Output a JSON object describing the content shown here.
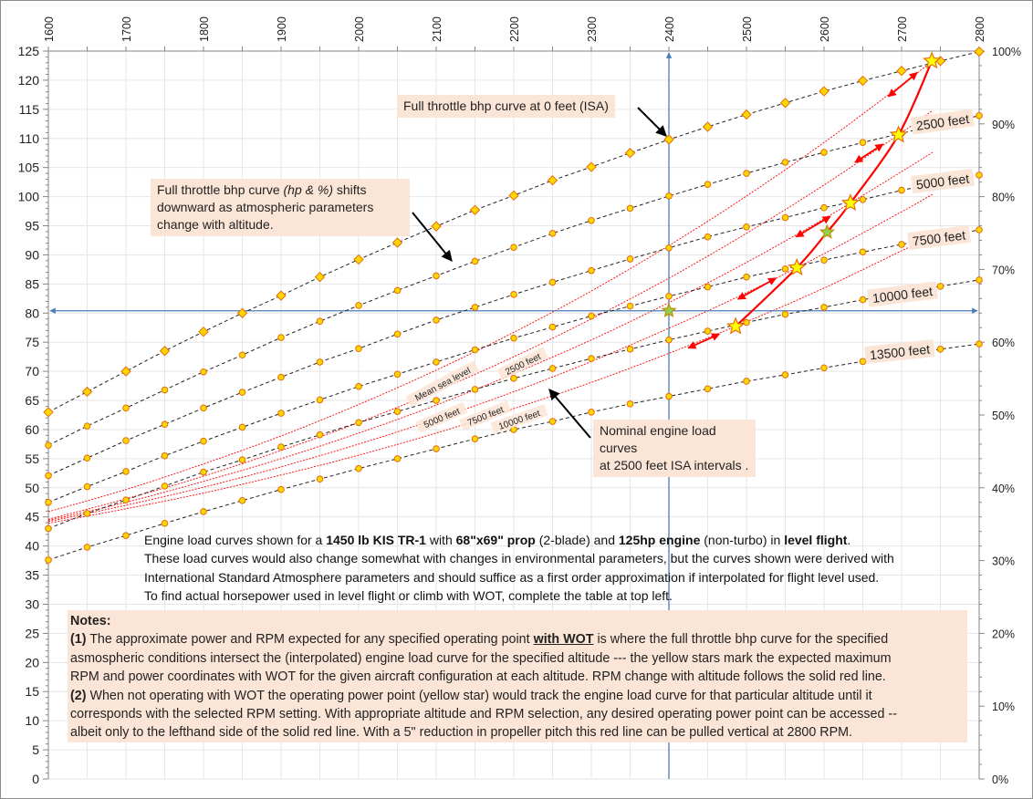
{
  "chart_data": {
    "type": "line",
    "title": "",
    "xlabel": "",
    "ylabel": "",
    "x_axis": {
      "position": "top",
      "range": [
        1600,
        2800
      ],
      "ticks": [
        1600,
        1700,
        1800,
        1900,
        2000,
        2100,
        2200,
        2300,
        2400,
        2500,
        2600,
        2700,
        2800
      ],
      "grid_step": 50
    },
    "y_axis_left": {
      "range": [
        0,
        125
      ],
      "ticks": [
        0,
        5,
        10,
        15,
        20,
        25,
        30,
        35,
        40,
        45,
        50,
        55,
        60,
        65,
        70,
        75,
        80,
        85,
        90,
        95,
        100,
        105,
        110,
        115,
        120,
        125
      ]
    },
    "y_axis_right": {
      "range": [
        0,
        100
      ],
      "ticks": [
        "0%",
        "10%",
        "20%",
        "30%",
        "40%",
        "50%",
        "60%",
        "70%",
        "80%",
        "90%",
        "100%"
      ]
    },
    "grid": true,
    "full_throttle_x": [
      1600,
      1650,
      1700,
      1750,
      1800,
      1850,
      1900,
      1950,
      2000,
      2050,
      2100,
      2150,
      2200,
      2250,
      2300,
      2350,
      2400,
      2450,
      2500,
      2550,
      2600,
      2650,
      2700,
      2750,
      2800
    ],
    "full_throttle_series": [
      {
        "name": "",
        "marker": "diamond",
        "values": [
          63.0,
          66.5,
          70.0,
          73.5,
          76.8,
          80.0,
          83.0,
          86.2,
          89.2,
          92.1,
          94.9,
          97.7,
          100.2,
          102.8,
          105.1,
          107.5,
          109.8,
          112.0,
          114.1,
          116.1,
          118.1,
          119.9,
          121.6,
          123.3,
          124.9
        ]
      },
      {
        "name": "2500 feet",
        "marker": "circle",
        "values": [
          57.3,
          60.6,
          63.7,
          66.8,
          69.9,
          72.8,
          75.8,
          78.6,
          81.3,
          83.9,
          86.4,
          88.9,
          91.3,
          93.7,
          95.9,
          98.0,
          100.1,
          102.1,
          104.0,
          105.9,
          107.6,
          109.3,
          110.9,
          null,
          113.9
        ]
      },
      {
        "name": "5000 feet",
        "marker": "circle",
        "values": [
          52.1,
          55.1,
          58.1,
          60.9,
          63.7,
          66.4,
          69.0,
          71.6,
          73.9,
          76.4,
          78.8,
          81.0,
          83.2,
          85.3,
          87.3,
          89.3,
          91.2,
          93.1,
          94.8,
          96.4,
          98.1,
          99.5,
          101.1,
          null,
          103.7
        ]
      },
      {
        "name": "7500 feet",
        "marker": "circle",
        "values": [
          47.5,
          50.2,
          52.8,
          55.5,
          58.0,
          60.4,
          62.8,
          65.1,
          67.4,
          69.5,
          71.6,
          73.7,
          75.7,
          77.6,
          79.5,
          81.2,
          82.9,
          84.5,
          86.2,
          87.6,
          89.1,
          90.5,
          91.8,
          null,
          94.3
        ]
      },
      {
        "name": "10000 feet",
        "marker": "circle",
        "values": [
          43.0,
          45.6,
          47.9,
          50.3,
          52.7,
          54.8,
          57.0,
          59.1,
          61.2,
          63.1,
          65.0,
          66.9,
          68.8,
          70.5,
          72.2,
          73.8,
          75.4,
          76.9,
          78.4,
          79.8,
          81.0,
          82.3,
          null,
          84.6,
          85.7
        ]
      },
      {
        "name": "13500 feet",
        "marker": "circle",
        "values": [
          37.6,
          39.8,
          41.8,
          43.9,
          45.9,
          47.8,
          49.7,
          51.5,
          53.3,
          55.0,
          56.7,
          58.4,
          60.0,
          61.4,
          63.0,
          64.4,
          65.7,
          67.0,
          68.3,
          69.4,
          70.6,
          71.7,
          null,
          73.8,
          74.7
        ]
      }
    ],
    "load_curve_x": [
      1600,
      1700,
      1800,
      1900,
      2000,
      2100,
      2200,
      2300,
      2400,
      2500,
      2600,
      2700,
      2740
    ],
    "load_curves": [
      {
        "name": "Mean sea level",
        "values": [
          45.9,
          49.7,
          54.1,
          58.9,
          64.3,
          70.2,
          76.7,
          83.8,
          91.6,
          100.1,
          109.3,
          119.2,
          123.3
        ]
      },
      {
        "name": "2500 feet",
        "values": [
          44.6,
          48.1,
          52.0,
          56.4,
          61.2,
          66.6,
          72.5,
          79.0,
          86.0,
          93.7,
          102.0,
          111.0,
          114.8
        ]
      },
      {
        "name": "5000 feet",
        "values": [
          44.4,
          47.5,
          51.1,
          55.0,
          59.4,
          64.2,
          69.6,
          75.4,
          81.8,
          88.7,
          96.2,
          104.3,
          107.6
        ]
      },
      {
        "name": "7500 feet",
        "values": [
          44.2,
          47.0,
          50.1,
          53.6,
          57.5,
          61.8,
          66.5,
          71.7,
          77.4,
          83.5,
          90.2,
          97.4,
          100.4
        ]
      },
      {
        "name": "10000 feet",
        "values": [
          43.9,
          46.4,
          49.1,
          52.2,
          55.6,
          59.4,
          63.6,
          68.1,
          73.1,
          78.5,
          84.3,
          90.7,
          93.3
        ]
      }
    ],
    "wot_line": [
      [
        2486,
        77.7
      ],
      [
        2565,
        87.8
      ],
      [
        2604,
        93.9
      ],
      [
        2634,
        98.9
      ],
      [
        2696,
        110.6
      ],
      [
        2739,
        123.3
      ]
    ],
    "wot_stars": [
      [
        2739,
        123.3
      ],
      [
        2696,
        110.6
      ],
      [
        2634,
        98.9
      ],
      [
        2565,
        87.8
      ],
      [
        2486,
        77.7
      ]
    ],
    "green_stars": [
      [
        2604,
        93.9
      ],
      [
        2400,
        80.4
      ]
    ],
    "direction_arrows": [
      [
        [
          2683,
          117.2
        ],
        [
          2720,
          121.3
        ]
      ],
      [
        [
          2640,
          105.9
        ],
        [
          2676,
          109.0
        ]
      ],
      [
        [
          2564,
          93.1
        ],
        [
          2608,
          96.6
        ]
      ],
      [
        [
          2489,
          82.4
        ],
        [
          2538,
          86.0
        ]
      ],
      [
        [
          2425,
          74.0
        ],
        [
          2465,
          76.4
        ]
      ]
    ],
    "crosshair": {
      "x": 2400,
      "y": 80.4
    },
    "colors": {
      "full_throttle_line": "#222222",
      "marker_fill": "#ffd700",
      "marker_stroke": "#e46c0a",
      "load_curve": "#ff0000",
      "wot_line": "#ff0000",
      "crosshair": "#4a7ebb",
      "star_fill": "#ffff00",
      "green_star_fill": "#92d050",
      "annotation_bg": "#fbe5d6",
      "grid": "#e6e6e6"
    }
  },
  "annotations": {
    "zero_feet": "Full throttle bhp curve at 0 feet (ISA)",
    "shift": {
      "line1_a": "Full throttle bhp curve ",
      "line1_i": "(hp & %)",
      "line1_b": " shifts",
      "line2": "downward as atmospheric parameters",
      "line3": "change with altitude."
    },
    "nominal": {
      "line1": "Nominal engine load curves",
      "line2": "at 2500 feet ISA intervals ."
    }
  },
  "paragraph": [
    [
      {
        "t": "Engine load curves shown for a "
      },
      {
        "t": "1450 lb KIS TR-1",
        "b": true
      },
      {
        "t": " with "
      },
      {
        "t": "68\"x69\" prop",
        "b": true
      },
      {
        "t": " (2-blade) and "
      },
      {
        "t": "125hp engine",
        "b": true
      },
      {
        "t": " (non-turbo) in "
      },
      {
        "t": "level flight",
        "b": true
      },
      {
        "t": "."
      }
    ],
    [
      {
        "t": "These load curves would also change  somewhat with changes in environmental parameters, but the curves shown were derived with"
      }
    ],
    [
      {
        "t": "International Standard Atmosphere parameters and should suffice as a first order approximation if interpolated for flight level used."
      }
    ],
    [
      {
        "t": "To find actual horsepower used in level flight or climb with WOT, complete the table at top left."
      }
    ]
  ],
  "notes": [
    [
      {
        "t": "Notes:",
        "b": true
      }
    ],
    [
      {
        "t": "(1)",
        "b": true
      },
      {
        "t": " The approximate power and RPM expected for any specified operating point "
      },
      {
        "t": "with WOT",
        "b": true,
        "u": true
      },
      {
        "t": " is where the full throttle bhp curve for the specified"
      }
    ],
    [
      {
        "t": "asmospheric conditions intersect the (interpolated) engine load curve for the specified  altitude --- the yellow stars mark the expected maximum"
      }
    ],
    [
      {
        "t": "RPM and power coordinates with WOT for the given aircraft configuration at each altitude.  RPM change with altitude follows the solid red line."
      }
    ],
    [
      {
        "t": "(2)",
        "b": true
      },
      {
        "t": " When not operating with WOT the operating power point (yellow star) would track the engine load curve for that particular  altitude  until it"
      }
    ],
    [
      {
        "t": "corresponds with the selected RPM setting. With appropriate altitude and RPM selection, any desired operating power point can be accessed --"
      }
    ],
    [
      {
        "t": "albeit only to the lefthand side of the solid red line. With a 5\" reduction in propeller pitch this red line can be pulled vertical at 2800 RPM."
      }
    ]
  ]
}
